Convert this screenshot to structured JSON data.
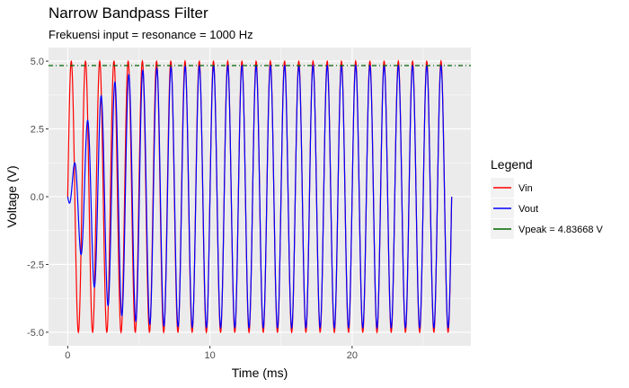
{
  "chart_data": {
    "type": "line",
    "title": "Narrow Bandpass Filter",
    "subtitle": "Frekuensi input = resonance = 1000 Hz",
    "xlabel": "Time (ms)",
    "ylabel": "Voltage (V)",
    "xlim": [
      0,
      27
    ],
    "ylim": [
      -5,
      5
    ],
    "x_ticks": [
      0,
      10,
      20
    ],
    "x_tick_labels": [
      "0",
      "10",
      "20"
    ],
    "y_ticks": [
      -5,
      -2.5,
      0,
      2.5,
      5
    ],
    "y_tick_labels": [
      "-5.0",
      "-2.5",
      "0.0",
      "2.5",
      "5.0"
    ],
    "grid": true,
    "legend": {
      "title": "Legend",
      "position": "right",
      "entries": [
        {
          "label": "Vin",
          "color": "#FF0000"
        },
        {
          "label": "Vout",
          "color": "#0000FF"
        },
        {
          "label": "Vpeak =  4.83668  V",
          "color": "#006400"
        }
      ]
    },
    "series": [
      {
        "name": "Vin",
        "color": "#FF0000",
        "kind": "sine",
        "amplitude_V": 5,
        "frequency_kHz": 1,
        "t_end_ms": 27
      },
      {
        "name": "Vout",
        "color": "#0000FF",
        "kind": "damped_rise_sine",
        "steady_amplitude_V": 4.83668,
        "frequency_kHz": 1,
        "t_end_ms": 27
      },
      {
        "name": "Vpeak",
        "color": "#006400",
        "kind": "hline",
        "y": 4.83668,
        "linetype": "dashed"
      }
    ]
  }
}
